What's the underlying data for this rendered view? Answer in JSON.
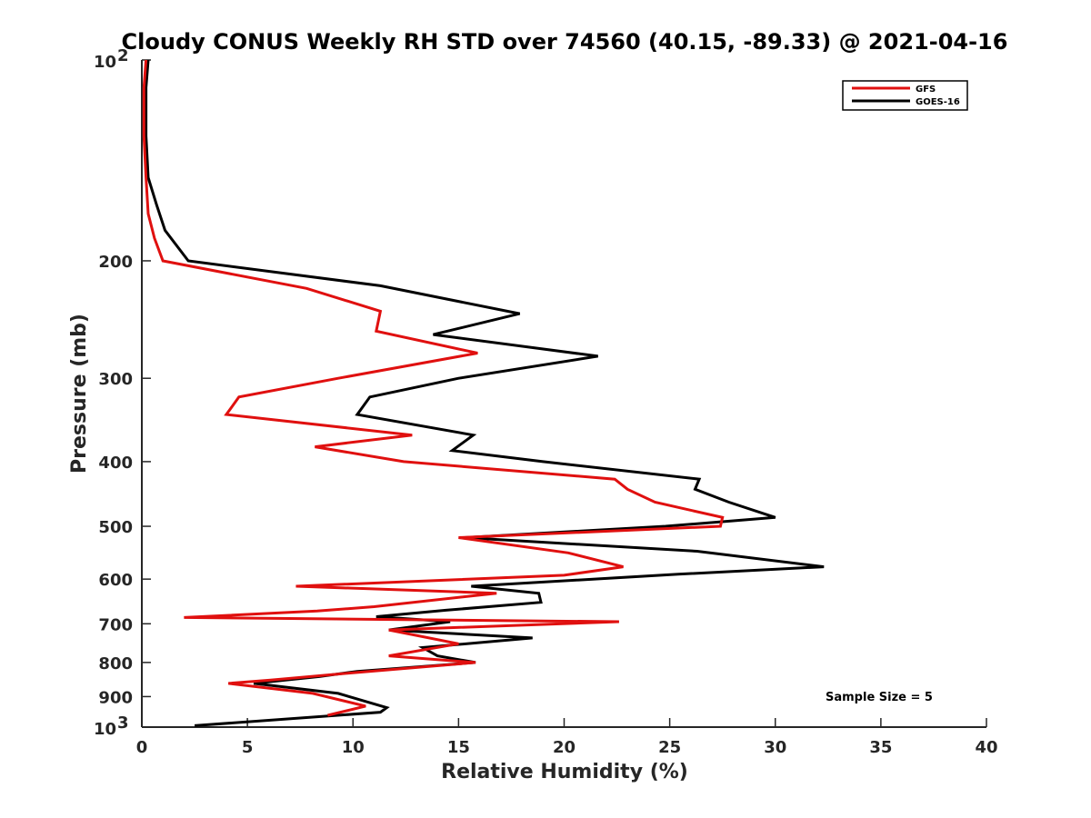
{
  "chart_data": {
    "type": "line",
    "title": "Cloudy CONUS Weekly RH STD over 74560 (40.15, -89.33) @ 2021-04-16",
    "xlabel": "Relative Humidity (%)",
    "ylabel": "Pressure (mb)",
    "xlim": [
      0,
      40
    ],
    "ylim": [
      100,
      1000
    ],
    "y_scale": "log",
    "y_reversed": true,
    "grid": false,
    "legend_position": "top-right",
    "annotation": "Sample Size = 5",
    "x_ticks": [
      "0",
      "5",
      "10",
      "15",
      "20",
      "25",
      "30",
      "35",
      "40"
    ],
    "y_ticks": [
      {
        "value": 100,
        "base": "10",
        "exp": "2"
      },
      {
        "value": 200,
        "label": "200"
      },
      {
        "value": 300,
        "label": "300"
      },
      {
        "value": 400,
        "label": "400"
      },
      {
        "value": 500,
        "label": "500"
      },
      {
        "value": 600,
        "label": "600"
      },
      {
        "value": 700,
        "label": "700"
      },
      {
        "value": 800,
        "label": "800"
      },
      {
        "value": 900,
        "label": "900"
      },
      {
        "value": 1000,
        "base": "10",
        "exp": "3"
      }
    ],
    "series": [
      {
        "name": "GFS",
        "color": "#e0100f",
        "points": [
          [
            0.2,
            100
          ],
          [
            0.1,
            110
          ],
          [
            0.1,
            130
          ],
          [
            0.2,
            150
          ],
          [
            0.3,
            170
          ],
          [
            0.6,
            185
          ],
          [
            1.0,
            200
          ],
          [
            7.8,
            220
          ],
          [
            11.3,
            238
          ],
          [
            11.1,
            255
          ],
          [
            15.9,
            275
          ],
          [
            9.3,
            300
          ],
          [
            4.6,
            320
          ],
          [
            4.0,
            340
          ],
          [
            12.8,
            365
          ],
          [
            8.2,
            380
          ],
          [
            12.4,
            400
          ],
          [
            22.4,
            425
          ],
          [
            23.0,
            440
          ],
          [
            24.3,
            460
          ],
          [
            27.5,
            485
          ],
          [
            27.4,
            500
          ],
          [
            15.0,
            520
          ],
          [
            20.2,
            548
          ],
          [
            22.8,
            575
          ],
          [
            20.0,
            592
          ],
          [
            7.3,
            615
          ],
          [
            16.8,
            630
          ],
          [
            11.0,
            660
          ],
          [
            8.3,
            670
          ],
          [
            2.0,
            685
          ],
          [
            22.6,
            695
          ],
          [
            11.7,
            715
          ],
          [
            15.0,
            750
          ],
          [
            11.7,
            782
          ],
          [
            13.5,
            790
          ],
          [
            15.8,
            800
          ],
          [
            9.8,
            830
          ],
          [
            6.1,
            850
          ],
          [
            4.1,
            860
          ],
          [
            8.1,
            890
          ],
          [
            10.6,
            930
          ],
          [
            8.8,
            960
          ]
        ]
      },
      {
        "name": "GOES-16",
        "color": "#000000",
        "points": [
          [
            0.3,
            100
          ],
          [
            0.2,
            110
          ],
          [
            0.2,
            130
          ],
          [
            0.3,
            150
          ],
          [
            0.7,
            165
          ],
          [
            1.1,
            180
          ],
          [
            2.2,
            200
          ],
          [
            11.3,
            218
          ],
          [
            17.9,
            240
          ],
          [
            13.8,
            258
          ],
          [
            21.6,
            278
          ],
          [
            15.0,
            300
          ],
          [
            10.8,
            320
          ],
          [
            10.2,
            340
          ],
          [
            15.7,
            365
          ],
          [
            14.7,
            385
          ],
          [
            19.0,
            400
          ],
          [
            26.4,
            425
          ],
          [
            26.2,
            440
          ],
          [
            27.8,
            460
          ],
          [
            30.0,
            485
          ],
          [
            24.8,
            500
          ],
          [
            15.3,
            520
          ],
          [
            26.3,
            545
          ],
          [
            32.3,
            575
          ],
          [
            25.4,
            590
          ],
          [
            15.6,
            615
          ],
          [
            18.8,
            630
          ],
          [
            18.9,
            650
          ],
          [
            14.4,
            668
          ],
          [
            11.1,
            683
          ],
          [
            14.6,
            695
          ],
          [
            11.7,
            715
          ],
          [
            18.5,
            735
          ],
          [
            13.3,
            760
          ],
          [
            14.0,
            782
          ],
          [
            15.8,
            800
          ],
          [
            10.2,
            825
          ],
          [
            8.4,
            840
          ],
          [
            5.3,
            860
          ],
          [
            9.3,
            890
          ],
          [
            11.6,
            935
          ],
          [
            11.3,
            950
          ],
          [
            2.5,
            995
          ]
        ]
      }
    ]
  }
}
